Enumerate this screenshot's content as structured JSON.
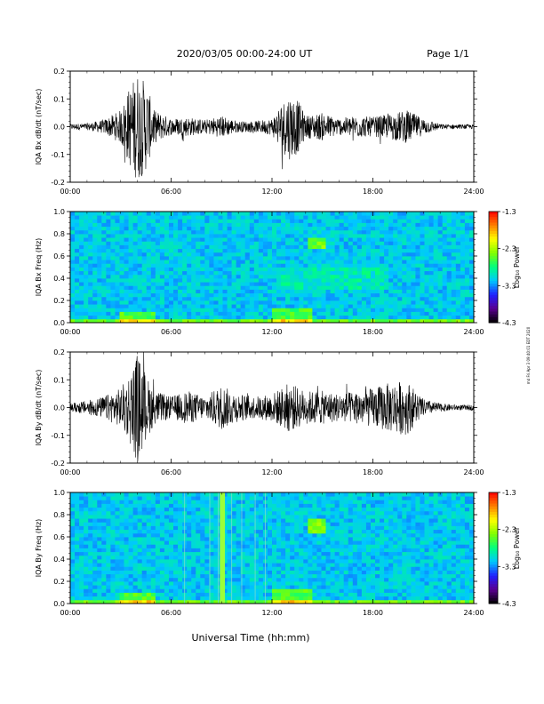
{
  "header": {
    "date_range": "2020/03/05  00:00-24:00 UT",
    "page": "Page 1/1"
  },
  "x_axis": {
    "ticks": [
      "00:00",
      "06:00",
      "12:00",
      "18:00",
      "24:00"
    ],
    "tick_hours": [
      0,
      6,
      12,
      18,
      24
    ],
    "title": "Universal Time (hh:mm)"
  },
  "stamp": "md Fri Apr 3 09:40:01 EDT 2020",
  "colors": {
    "trace": "#000000",
    "background": "#ffffff",
    "colorscale": [
      "#000000",
      "#5a0090",
      "#2020ff",
      "#00c8ff",
      "#00ff80",
      "#80ff00",
      "#ffff00",
      "#ff8000",
      "#ff0000"
    ]
  },
  "chart_data": [
    {
      "type": "line",
      "id": "bx-dbdt",
      "ylabel": "IQA Bx dB/dt (nT/sec)",
      "xlim": [
        0,
        24
      ],
      "ylim": [
        -0.2,
        0.2
      ],
      "yticks": [
        0.2,
        0.1,
        0.0,
        -0.1,
        -0.2
      ],
      "ytick_labels": [
        "0.2",
        "0.1",
        "0.0",
        "-0.1",
        "-0.2"
      ],
      "series": [
        {
          "x": [
            0,
            1,
            2,
            3,
            3.5,
            4,
            4.5,
            5,
            6,
            7,
            8,
            9,
            10,
            11,
            12,
            12.5,
            13,
            13.5,
            14,
            15,
            16,
            17,
            18,
            19,
            20,
            21,
            22,
            23,
            24
          ],
          "amplitude": [
            0.01,
            0.012,
            0.025,
            0.06,
            0.14,
            0.2,
            0.16,
            0.06,
            0.03,
            0.035,
            0.025,
            0.04,
            0.02,
            0.02,
            0.03,
            0.08,
            0.12,
            0.1,
            0.04,
            0.05,
            0.03,
            0.04,
            0.035,
            0.045,
            0.06,
            0.03,
            0.01,
            0.008,
            0.008
          ]
        }
      ]
    },
    {
      "type": "heatmap",
      "id": "bx-spectrogram",
      "ylabel": "IQA Bx Freq (Hz)",
      "xlim": [
        0,
        24
      ],
      "ylim": [
        0,
        1.0
      ],
      "yticks": [
        1.0,
        0.8,
        0.6,
        0.4,
        0.2,
        0.0
      ],
      "ytick_labels": [
        "1.0",
        "0.8",
        "0.6",
        "0.4",
        "0.2",
        "0.0"
      ],
      "colorbar": {
        "label": "Log₁₀ Power",
        "range": [
          -4.3,
          -1.3
        ],
        "ticks": [
          -1.3,
          -2.3,
          -3.3,
          -4.3
        ],
        "tick_labels": [
          "-1.3",
          "-2.3",
          "-3.3",
          "-4.3"
        ]
      },
      "features": [
        {
          "kind": "low_freq_band",
          "from_hour": 0,
          "to_hour": 24,
          "max_freq": 0.05
        },
        {
          "kind": "enhancement",
          "from_hour": 3,
          "to_hour": 5,
          "max_freq": 0.1
        },
        {
          "kind": "enhancement",
          "from_hour": 12,
          "to_hour": 14.5,
          "max_freq": 0.12
        },
        {
          "kind": "blob",
          "hour": 14.7,
          "freq": 0.72
        },
        {
          "kind": "diffuse",
          "from_hour": 12.5,
          "to_hour": 19,
          "freq_from": 0.3,
          "freq_to": 0.5
        }
      ]
    },
    {
      "type": "line",
      "id": "by-dbdt",
      "ylabel": "IQA By dB/dt (nT/sec)",
      "xlim": [
        0,
        24
      ],
      "ylim": [
        -0.2,
        0.2
      ],
      "yticks": [
        0.2,
        0.1,
        0.0,
        -0.1,
        -0.2
      ],
      "ytick_labels": [
        "0.2",
        "0.1",
        "0.0",
        "-0.1",
        "-0.2"
      ],
      "series": [
        {
          "x": [
            0,
            1,
            2,
            3,
            3.5,
            4,
            4.5,
            5,
            6,
            7,
            8,
            9,
            10,
            11,
            12,
            12.5,
            13,
            14,
            15,
            16,
            17,
            18,
            19,
            20,
            21,
            22,
            23,
            24
          ],
          "amplitude": [
            0.015,
            0.025,
            0.04,
            0.07,
            0.12,
            0.2,
            0.12,
            0.06,
            0.04,
            0.06,
            0.04,
            0.08,
            0.05,
            0.04,
            0.05,
            0.07,
            0.09,
            0.06,
            0.06,
            0.05,
            0.06,
            0.07,
            0.09,
            0.1,
            0.03,
            0.015,
            0.01,
            0.01
          ]
        }
      ]
    },
    {
      "type": "heatmap",
      "id": "by-spectrogram",
      "ylabel": "IQA By Freq (Hz)",
      "xlim": [
        0,
        24
      ],
      "ylim": [
        0,
        1.0
      ],
      "yticks": [
        1.0,
        0.8,
        0.6,
        0.4,
        0.2,
        0.0
      ],
      "ytick_labels": [
        "1.0",
        "0.8",
        "0.6",
        "0.4",
        "0.2",
        "0.0"
      ],
      "colorbar": {
        "label": "Log₁₀ Power",
        "range": [
          -4.3,
          -1.3
        ],
        "ticks": [
          -1.3,
          -2.3,
          -3.3,
          -4.3
        ],
        "tick_labels": [
          "-1.3",
          "-2.3",
          "-3.3",
          "-4.3"
        ]
      },
      "features": [
        {
          "kind": "low_freq_band",
          "from_hour": 0,
          "to_hour": 24,
          "max_freq": 0.05
        },
        {
          "kind": "enhancement",
          "from_hour": 3,
          "to_hour": 5,
          "max_freq": 0.1
        },
        {
          "kind": "enhancement",
          "from_hour": 12,
          "to_hour": 14.5,
          "max_freq": 0.12
        },
        {
          "kind": "blob",
          "hour": 14.7,
          "freq": 0.7
        },
        {
          "kind": "vertical_line",
          "hour": 6.8
        },
        {
          "kind": "vertical_line",
          "hour": 8.3
        },
        {
          "kind": "vertical_line",
          "hour": 8.8
        },
        {
          "kind": "broadband_stripe",
          "from_hour": 8.9,
          "to_hour": 9.2
        },
        {
          "kind": "vertical_line",
          "hour": 9.6
        },
        {
          "kind": "vertical_line",
          "hour": 10.2
        },
        {
          "kind": "vertical_line",
          "hour": 11.0
        },
        {
          "kind": "vertical_line",
          "hour": 11.6
        }
      ]
    }
  ]
}
